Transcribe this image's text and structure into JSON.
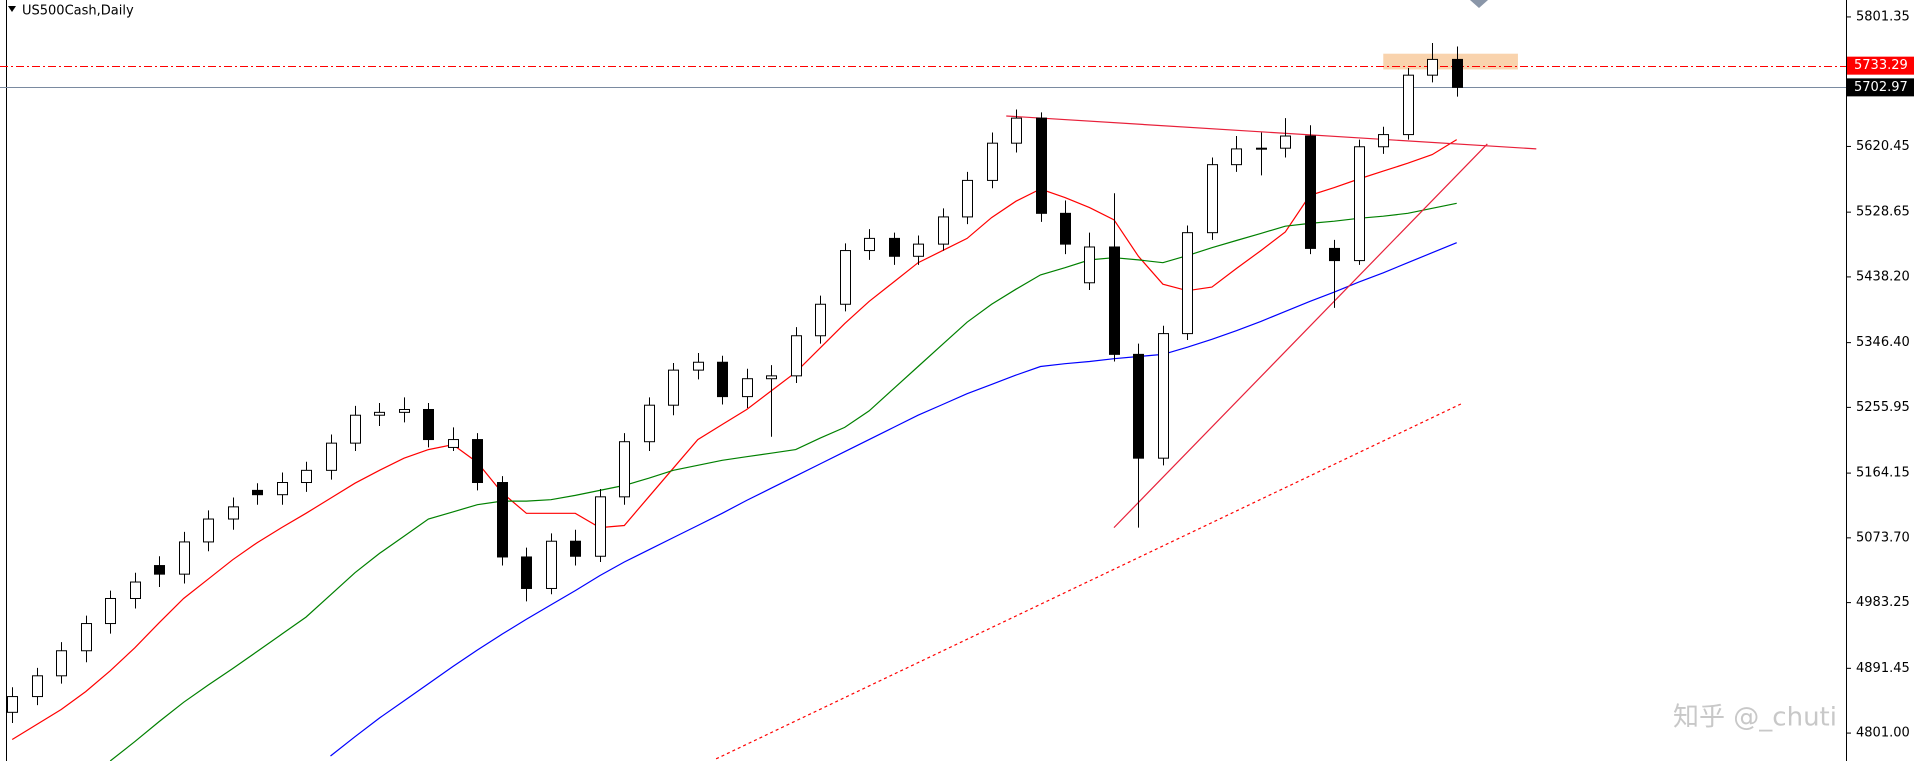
{
  "chart_data": {
    "type": "candlestick",
    "title": "US500Cash,Daily",
    "up_color": "#ffffff",
    "down_color": "#000000",
    "open": [
      4830,
      4852,
      4881,
      4916,
      4954,
      4989,
      5035,
      5023,
      5068,
      5100,
      5140,
      5134,
      5151,
      5168,
      5206,
      5245,
      5249,
      5253,
      5200,
      5211,
      5151,
      5047,
      5003,
      5069,
      5048,
      5131,
      5208,
      5259,
      5308,
      5319,
      5271,
      5296,
      5300,
      5356,
      5400,
      5475,
      5492,
      5467,
      5484,
      5522,
      5573,
      5625,
      5660,
      5527,
      5430,
      5480,
      5330,
      5185,
      5359,
      5500,
      5595,
      5617,
      5618,
      5635,
      5478,
      5461,
      5620,
      5637,
      5720,
      5742
    ],
    "high": [
      4865,
      4892,
      4928,
      4965,
      5000,
      5025,
      5048,
      5082,
      5112,
      5130,
      5150,
      5165,
      5180,
      5218,
      5258,
      5262,
      5270,
      5262,
      5228,
      5220,
      5160,
      5060,
      5080,
      5085,
      5142,
      5220,
      5270,
      5318,
      5332,
      5328,
      5310,
      5315,
      5368,
      5412,
      5485,
      5505,
      5500,
      5496,
      5534,
      5585,
      5640,
      5672,
      5668,
      5545,
      5500,
      5555,
      5345,
      5370,
      5510,
      5605,
      5635,
      5640,
      5660,
      5650,
      5490,
      5630,
      5648,
      5730,
      5765,
      5760
    ],
    "low": [
      4815,
      4840,
      4870,
      4900,
      4940,
      4975,
      5005,
      5010,
      5055,
      5085,
      5120,
      5120,
      5138,
      5155,
      5195,
      5230,
      5235,
      5200,
      5195,
      5140,
      5035,
      4985,
      4995,
      5035,
      5040,
      5120,
      5195,
      5245,
      5295,
      5260,
      5255,
      5215,
      5290,
      5345,
      5390,
      5462,
      5455,
      5455,
      5475,
      5512,
      5562,
      5612,
      5515,
      5470,
      5420,
      5320,
      5088,
      5175,
      5350,
      5490,
      5585,
      5580,
      5605,
      5470,
      5395,
      5455,
      5610,
      5630,
      5710,
      5690
    ],
    "close": [
      4852,
      4881,
      4916,
      4954,
      4989,
      5012,
      5023,
      5068,
      5100,
      5117,
      5134,
      5151,
      5168,
      5206,
      5245,
      5249,
      5253,
      5211,
      5211,
      5151,
      5047,
      5003,
      5069,
      5048,
      5131,
      5208,
      5259,
      5308,
      5319,
      5271,
      5296,
      5300,
      5356,
      5400,
      5475,
      5492,
      5467,
      5484,
      5522,
      5573,
      5625,
      5660,
      5527,
      5484,
      5480,
      5330,
      5185,
      5359,
      5500,
      5595,
      5617,
      5618,
      5635,
      5478,
      5461,
      5620,
      5637,
      5720,
      5742,
      5702.97
    ],
    "moving_averages": [
      {
        "color": "#ff0000",
        "values": [
          4792,
          4813,
          4834,
          4859,
          4888,
          4920,
          4955,
          4989,
          5016,
          5043,
          5067,
          5088,
          5108,
          5129,
          5150,
          5168,
          5185,
          5197,
          5204,
          5179,
          5137,
          5108,
          5108,
          5108,
          5088,
          5091,
          5131,
          5171,
          5211,
          5232,
          5253,
          5279,
          5305,
          5339,
          5373,
          5404,
          5431,
          5458,
          5475,
          5492,
          5521,
          5544,
          5561,
          5549,
          5535,
          5518,
          5467,
          5428,
          5419,
          5424,
          5450,
          5475,
          5501,
          5552,
          5563,
          5575,
          5586,
          5597,
          5609,
          5630
        ]
      },
      {
        "color": "#008000",
        "values": [
          null,
          null,
          null,
          null,
          4762,
          4789,
          4817,
          4844,
          4868,
          4891,
          4915,
          4939,
          4963,
          4994,
          5025,
          5052,
          5076,
          5100,
          5110,
          5120,
          5125,
          5125,
          5127,
          5133,
          5140,
          5147,
          5157,
          5168,
          5175,
          5182,
          5187,
          5192,
          5197,
          5213,
          5228,
          5251,
          5282,
          5313,
          5344,
          5375,
          5400,
          5421,
          5441,
          5451,
          5462,
          5465,
          5462,
          5458,
          5468,
          5479,
          5489,
          5499,
          5509,
          5513,
          5516,
          5520,
          5523,
          5527,
          5534,
          5541
        ]
      },
      {
        "color": "#0000ff",
        "values": [
          null,
          null,
          null,
          null,
          null,
          null,
          null,
          null,
          null,
          null,
          null,
          null,
          null,
          4769,
          4796,
          4822,
          4846,
          4870,
          4894,
          4917,
          4939,
          4960,
          4980,
          5000,
          5021,
          5040,
          5057,
          5074,
          5091,
          5108,
          5126,
          5143,
          5160,
          5177,
          5194,
          5211,
          5228,
          5245,
          5260,
          5275,
          5288,
          5301,
          5313,
          5317,
          5320,
          5324,
          5327,
          5330,
          5340,
          5351,
          5363,
          5376,
          5390,
          5404,
          5417,
          5431,
          5444,
          5458,
          5472,
          5486
        ]
      }
    ],
    "trendlines": [
      {
        "x": [
          40.6,
          62.25
        ],
        "y": [
          5663,
          5617
        ],
        "color": "#e8203a",
        "dash": "solid"
      },
      {
        "x": [
          45,
          60.25
        ],
        "y": [
          5088,
          5624
        ],
        "color": "#e8203a",
        "dash": "solid"
      },
      {
        "x": [
          28.75,
          59.25
        ],
        "y": [
          4765,
          5262
        ],
        "color": "#ff0000",
        "dash": "dotted"
      }
    ],
    "zone": {
      "x": [
        56,
        61.5
      ],
      "y": [
        5728,
        5750
      ],
      "color": "#f9d3ad"
    },
    "price_lines": [
      {
        "value": 5733.29,
        "color": "#ff0000",
        "dash": "dashdot"
      },
      {
        "value": 5702.97,
        "color": "#7a8aa0",
        "dash": "solid",
        "label_color": "#000000"
      }
    ],
    "xlim": [
      -0.5,
      74.9
    ],
    "ylim": [
      4762,
      5825
    ],
    "yticks": [
      5801.35,
      5620.45,
      5528.65,
      {
        "value": 5438.2,
        "label": "5438.20"
      },
      {
        "value": 5346.4,
        "label": "5346.40"
      },
      5255.95,
      5164.15,
      {
        "value": 5073.7,
        "label": "5073.70"
      },
      4983.25,
      4891.45,
      {
        "value": 4801,
        "label": "4801.00"
      }
    ],
    "watermark": "知乎 @_chuti"
  }
}
